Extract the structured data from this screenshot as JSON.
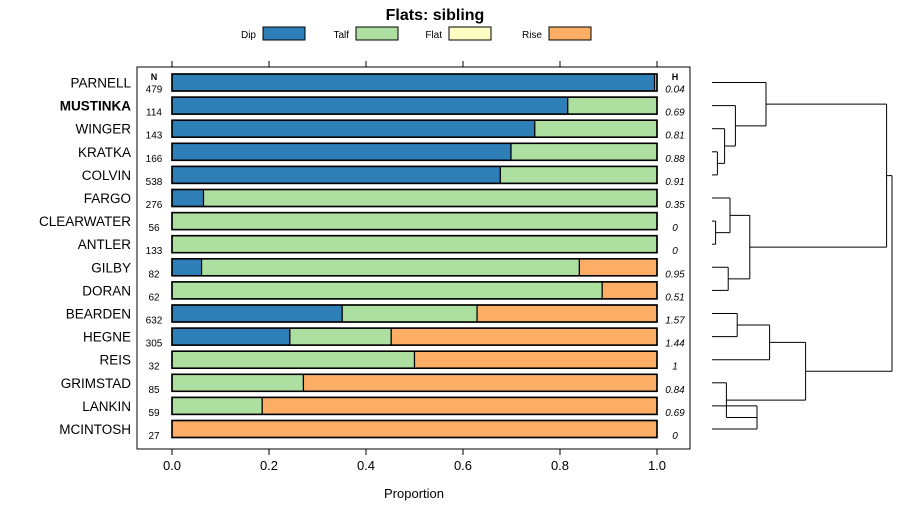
{
  "chart_data": {
    "type": "bar",
    "stacked": true,
    "orientation": "horizontal",
    "title": "Flats: sibling",
    "xlabel": "Proportion",
    "ylabel": "",
    "xlim": [
      0,
      1
    ],
    "xticks": [
      "0.0",
      "0.2",
      "0.4",
      "0.6",
      "0.8",
      "1.0"
    ],
    "legend": {
      "placement": "top",
      "entries": [
        {
          "name": "Dip",
          "color": "#2e7eb8"
        },
        {
          "name": "Talf",
          "color": "#addfa0"
        },
        {
          "name": "Flat",
          "color": "#ffffc4"
        },
        {
          "name": "Rise",
          "color": "#fdae66"
        }
      ]
    },
    "n_header": "N",
    "h_header": "H",
    "highlight": "MUSTINKA",
    "categories": [
      "PARNELL",
      "MUSTINKA",
      "WINGER",
      "KRATKA",
      "COLVIN",
      "FARGO",
      "CLEARWATER",
      "ANTLER",
      "GILBY",
      "DORAN",
      "BEARDEN",
      "HEGNE",
      "REIS",
      "GRIMSTAD",
      "LANKIN",
      "MCINTOSH"
    ],
    "n": [
      "479",
      "114",
      "143",
      "166",
      "538",
      "276",
      "56",
      "133",
      "82",
      "62",
      "632",
      "305",
      "32",
      "85",
      "59",
      "27"
    ],
    "h": [
      "0.04",
      "0.69",
      "0.81",
      "0.88",
      "0.91",
      "0.35",
      "0",
      "0",
      "0.95",
      "0.51",
      "1.57",
      "1.44",
      "1",
      "0.84",
      "0.69",
      "0"
    ],
    "series": [
      {
        "name": "Dip",
        "values": [
          0.995,
          0.816,
          0.748,
          0.699,
          0.677,
          0.065,
          0,
          0,
          0.061,
          0,
          0.351,
          0.243,
          0,
          0,
          0,
          0
        ]
      },
      {
        "name": "Talf",
        "values": [
          0.005,
          0.184,
          0.252,
          0.301,
          0.323,
          0.935,
          1,
          1,
          0.779,
          0.887,
          0.278,
          0.209,
          0.5,
          0.271,
          0.186,
          0
        ]
      },
      {
        "name": "Flat",
        "values": [
          0,
          0,
          0,
          0,
          0,
          0,
          0,
          0,
          0,
          0,
          0,
          0,
          0,
          0,
          0,
          0
        ]
      },
      {
        "name": "Rise",
        "values": [
          0,
          0,
          0,
          0,
          0,
          0,
          0,
          0,
          0.16,
          0.113,
          0.371,
          0.548,
          0.5,
          0.729,
          0.814,
          1
        ]
      }
    ],
    "dendrogram": {
      "merges": [
        [
          3,
          4,
          0.03
        ],
        [
          2,
          -1,
          0.07
        ],
        [
          1,
          -2,
          0.13
        ],
        [
          0,
          -3,
          0.3
        ],
        [
          6,
          7,
          0.02
        ],
        [
          5,
          -5,
          0.1
        ],
        [
          8,
          9,
          0.09
        ],
        [
          -6,
          -7,
          0.21
        ],
        [
          -4,
          -8,
          0.97
        ],
        [
          10,
          11,
          0.14
        ],
        [
          -10,
          12,
          0.32
        ],
        [
          14,
          15,
          0.25
        ],
        [
          13,
          -12,
          0.08
        ],
        [
          -11,
          -13,
          0.52
        ],
        [
          -9,
          -14,
          1.0
        ]
      ]
    }
  }
}
